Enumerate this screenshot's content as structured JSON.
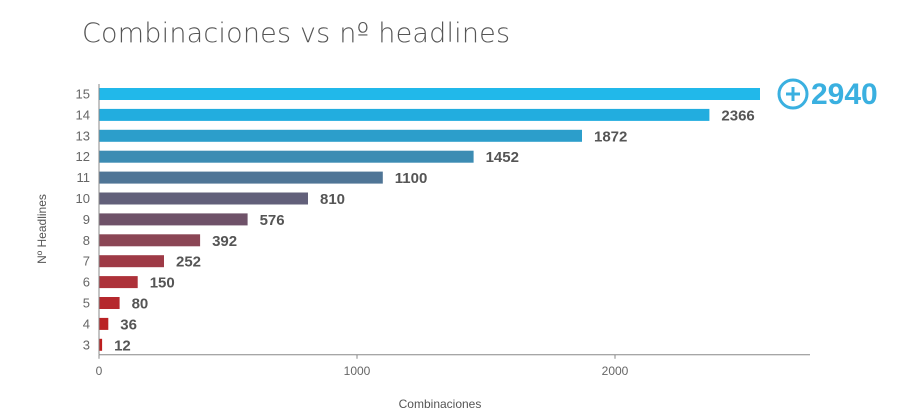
{
  "chart_data": {
    "type": "bar",
    "orientation": "horizontal",
    "title": "Combinaciones vs nº headlines",
    "xlabel": "Combinaciones",
    "ylabel": "Nº Headlines",
    "categories": [
      "15",
      "14",
      "13",
      "12",
      "11",
      "10",
      "9",
      "8",
      "7",
      "6",
      "5",
      "4",
      "3"
    ],
    "values": [
      2940,
      2366,
      1872,
      1452,
      1100,
      810,
      576,
      392,
      252,
      150,
      80,
      36,
      12
    ],
    "value_labels": [
      "+2940",
      "2366",
      "1872",
      "1452",
      "1100",
      "810",
      "576",
      "392",
      "252",
      "150",
      "80",
      "36",
      "12"
    ],
    "xticks": [
      "0",
      "1000",
      "2000"
    ],
    "xtick_values": [
      0,
      1000,
      2000
    ],
    "xlim": [
      0,
      2720
    ],
    "clipped_bar_marker": "plus-circle-icon",
    "bar_colors": [
      "#21b8ea",
      "#22addf",
      "#2c9ecb",
      "#3c8cb3",
      "#4f7596",
      "#62607a",
      "#6f5269",
      "#8b4655",
      "#9e3a46",
      "#ad3139",
      "#b5282d",
      "#ba2224",
      "#bd1e1e"
    ],
    "highlight_color": "#3ab0e0",
    "axis_color": "#888888"
  }
}
